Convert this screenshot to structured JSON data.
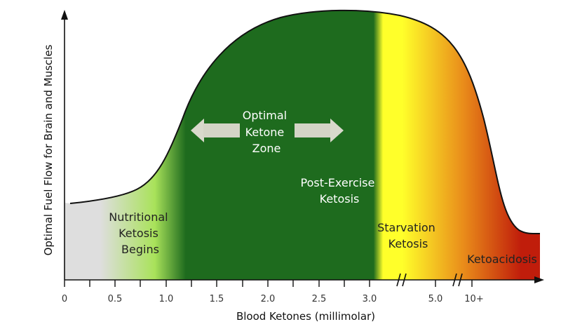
{
  "chart_data": {
    "type": "area",
    "title": "",
    "xlabel": "Blood Ketones (millimolar)",
    "ylabel": "Optimal Fuel Flow for Brain and Muscles",
    "x_tick_labels": [
      "0",
      "0.5",
      "1.0",
      "1.5",
      "2.0",
      "2.5",
      "3.0",
      "5.0",
      "10+"
    ],
    "x_breaks_after": [
      "3.0",
      "5.0"
    ],
    "zones": [
      {
        "name": "Nutritional Ketosis Begins",
        "lines": [
          "Nutritional",
          "Ketosis",
          "Begins"
        ],
        "color": "#dedede",
        "text_color": "#222222"
      },
      {
        "name": "Optimal Ketone Zone",
        "lines": [
          "Optimal",
          "Ketone",
          "Zone"
        ],
        "color": "#1e6b1e",
        "text_color": "#ffffff"
      },
      {
        "name": "Post-Exercise Ketosis",
        "lines": [
          "Post-Exercise",
          "Ketosis"
        ],
        "color": "#1e6b1e",
        "text_color": "#ffffff"
      },
      {
        "name": "Starvation Ketosis",
        "lines": [
          "Starvation",
          "Ketosis"
        ],
        "color": "#f3e21a",
        "text_color": "#222222"
      },
      {
        "name": "Ketoacidosis",
        "lines": [
          "Ketoacidosis"
        ],
        "color": "#c01d0b",
        "text_color": "#222222"
      }
    ],
    "colors": {
      "gray": "#dedede",
      "light_green": "#a9e25a",
      "dark_green": "#1e6b1e",
      "bright_yellow": "#ffff2a",
      "orange": "#e98b1a",
      "red": "#c01d0b",
      "arrow": "#d9d9cc",
      "axis": "#111111"
    },
    "grid": false,
    "legend": "none"
  }
}
